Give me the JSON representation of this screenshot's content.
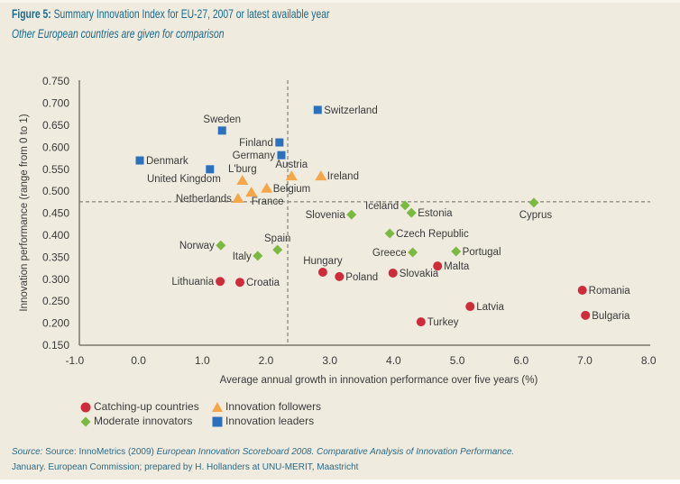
{
  "header": {
    "figure_label": "Figure 5:",
    "title": " Summary Innovation Index for EU-27, 2007 or latest available year",
    "subtitle": "Other European countries are given for comparison"
  },
  "source": {
    "line1": [
      {
        "text": "Source:",
        "italic": true
      },
      {
        "text": " Source: InnoMetrics (2009) ",
        "italic": false
      },
      {
        "text": "European Innovation Scoreboard 2008.  Comparative Analysis of Innovation Performance.",
        "italic": true
      }
    ],
    "line2": [
      {
        "text": "January. European Commission; prepared by H. Hollanders at UNU-MERIT, Maastricht",
        "italic": false
      }
    ]
  },
  "chart_data": {
    "type": "scatter",
    "title": "Summary Innovation Index for EU-27, 2007 or latest available year",
    "subtitle": "Other European countries are given for comparison",
    "xlabel": "Average annual growth in innovation performance over five years (%)",
    "ylabel": "Innovation performance (range from 0 to 1)",
    "xlim": [
      -1.0,
      8.0
    ],
    "ylim": [
      0.15,
      0.75
    ],
    "xticks": [
      "-1.0",
      "0.0",
      "1.0",
      "2.0",
      "3.0",
      "4.0",
      "5.0",
      "6.0",
      "7.0",
      "8.0"
    ],
    "yticks": [
      "0.750",
      "0.700",
      "0.650",
      "0.600",
      "0.550",
      "0.500",
      "0.450",
      "0.400",
      "0.350",
      "0.300",
      "0.250",
      "0.200",
      "0.150"
    ],
    "grid": false,
    "reference_lines": {
      "x": 2.34,
      "y": 0.476,
      "style": "dashed"
    },
    "legend_placement": "bottom-left",
    "series": [
      {
        "name": "Catching-up countries",
        "marker": "circle",
        "color": "#cf2b3a",
        "points": [
          {
            "label": "Lithuania",
            "x": 1.28,
            "y": 0.295,
            "label_pos": "left"
          },
          {
            "label": "Croatia",
            "x": 1.59,
            "y": 0.293,
            "label_pos": "right"
          },
          {
            "label": "Hungary",
            "x": 2.89,
            "y": 0.316,
            "label_pos": "above"
          },
          {
            "label": "Poland",
            "x": 3.15,
            "y": 0.306,
            "label_pos": "right"
          },
          {
            "label": "Slovakia",
            "x": 3.99,
            "y": 0.314,
            "label_pos": "right"
          },
          {
            "label": "Malta",
            "x": 4.69,
            "y": 0.33,
            "label_pos": "right"
          },
          {
            "label": "Latvia",
            "x": 5.2,
            "y": 0.238,
            "label_pos": "right"
          },
          {
            "label": "Turkey",
            "x": 4.43,
            "y": 0.203,
            "label_pos": "right"
          },
          {
            "label": "Romania",
            "x": 6.96,
            "y": 0.275,
            "label_pos": "right"
          },
          {
            "label": "Bulgaria",
            "x": 7.01,
            "y": 0.218,
            "label_pos": "right"
          }
        ]
      },
      {
        "name": "Innovation followers",
        "marker": "triangle",
        "color": "#f5a646",
        "points": [
          {
            "label": "L'burg",
            "x": 1.63,
            "y": 0.525,
            "label_pos": "above"
          },
          {
            "label": "Austria",
            "x": 2.4,
            "y": 0.535,
            "label_pos": "above"
          },
          {
            "label": "Ireland",
            "x": 2.86,
            "y": 0.535,
            "label_pos": "right"
          },
          {
            "label": "Belgium",
            "x": 2.01,
            "y": 0.507,
            "label_pos": "right"
          },
          {
            "label": "France",
            "x": 1.77,
            "y": 0.498,
            "label_pos": "below-right"
          },
          {
            "label": "Netherlands",
            "x": 1.56,
            "y": 0.484,
            "label_pos": "left"
          }
        ]
      },
      {
        "name": "Moderate innovators",
        "marker": "diamond",
        "color": "#7cb940",
        "points": [
          {
            "label": "Iceland",
            "x": 4.18,
            "y": 0.468,
            "label_pos": "left"
          },
          {
            "label": "Estonia",
            "x": 4.28,
            "y": 0.451,
            "label_pos": "right"
          },
          {
            "label": "Slovenia",
            "x": 3.34,
            "y": 0.447,
            "label_pos": "left"
          },
          {
            "label": "Cyprus",
            "x": 6.2,
            "y": 0.474,
            "label_pos": "below"
          },
          {
            "label": "Czech Republic",
            "x": 3.94,
            "y": 0.404,
            "label_pos": "right"
          },
          {
            "label": "Norway",
            "x": 1.29,
            "y": 0.377,
            "label_pos": "left"
          },
          {
            "label": "Spain",
            "x": 2.18,
            "y": 0.367,
            "label_pos": "above"
          },
          {
            "label": "Italy",
            "x": 1.87,
            "y": 0.353,
            "label_pos": "left"
          },
          {
            "label": "Greece",
            "x": 4.3,
            "y": 0.361,
            "label_pos": "left"
          },
          {
            "label": "Portugal",
            "x": 4.98,
            "y": 0.363,
            "label_pos": "right"
          }
        ]
      },
      {
        "name": "Innovation leaders",
        "marker": "square",
        "color": "#2b70bd",
        "points": [
          {
            "label": "Switzerland",
            "x": 2.81,
            "y": 0.685,
            "label_pos": "right"
          },
          {
            "label": "Sweden",
            "x": 1.31,
            "y": 0.638,
            "label_pos": "above"
          },
          {
            "label": "Finland",
            "x": 2.21,
            "y": 0.611,
            "label_pos": "left"
          },
          {
            "label": "Germany",
            "x": 2.24,
            "y": 0.582,
            "label_pos": "left"
          },
          {
            "label": "Denmark",
            "x": 0.02,
            "y": 0.57,
            "label_pos": "right"
          },
          {
            "label": "United Kingdom",
            "x": 1.12,
            "y": 0.55,
            "label_pos": "below-left"
          }
        ]
      }
    ]
  }
}
